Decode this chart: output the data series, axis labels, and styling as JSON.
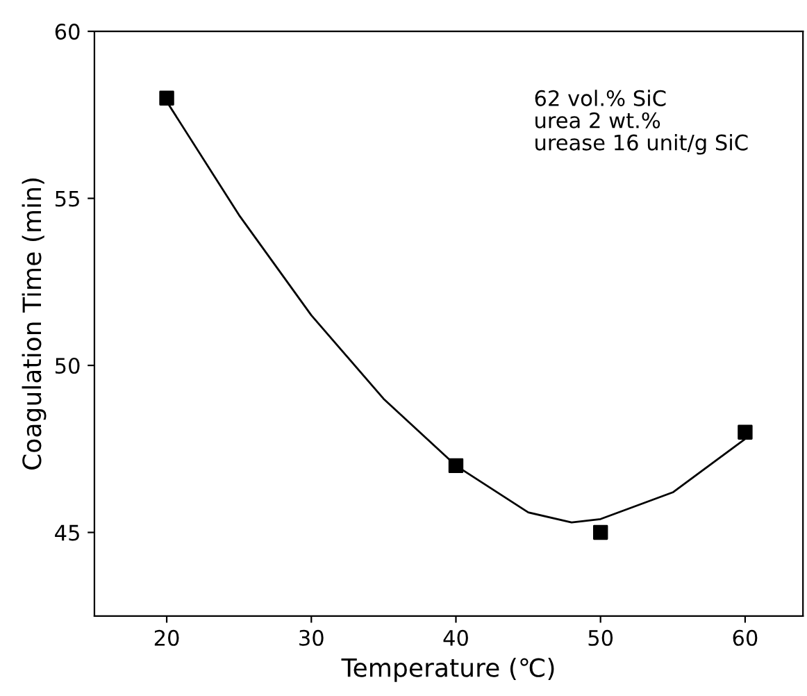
{
  "chart_data": {
    "type": "scatter",
    "xlabel": "Temperature (℃)",
    "ylabel": "Coagulation Time (min)",
    "annotations": [
      "62 vol.% SiC\nurea 2 wt.%\nurease 16 unit/g SiC"
    ],
    "xlim": [
      15,
      64
    ],
    "ylim": [
      42.5,
      60
    ],
    "xticks": [
      20,
      30,
      40,
      50,
      60
    ],
    "yticks": [
      45,
      50,
      55,
      60
    ],
    "grid": false,
    "legend": false,
    "series": [
      {
        "color": "#000000",
        "marker": "square",
        "x": [
          20,
          40,
          50,
          60
        ],
        "values": [
          58,
          47,
          45,
          48
        ]
      },
      {
        "type": "line",
        "color": "#000000",
        "marker": "none",
        "line_style": "solid",
        "x": [
          20,
          25,
          30,
          35,
          40,
          45,
          48,
          50,
          55,
          60
        ],
        "values": [
          57.9,
          54.5,
          51.5,
          49,
          47,
          45.6,
          45.3,
          45.4,
          46.2,
          47.8
        ]
      }
    ]
  }
}
